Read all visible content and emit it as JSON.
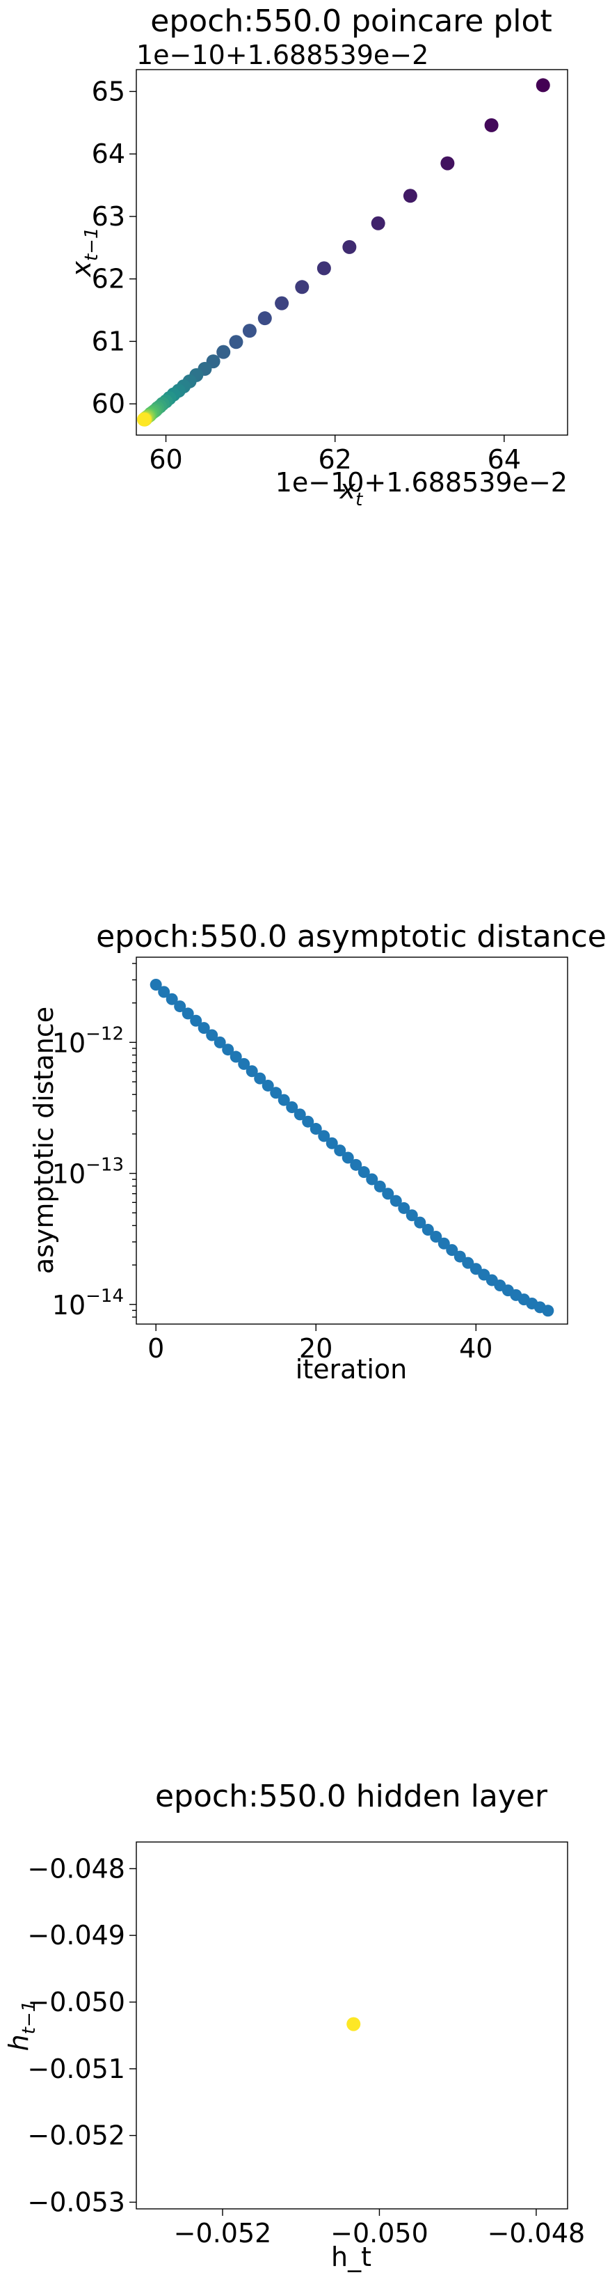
{
  "chart_data": [
    {
      "type": "scatter",
      "title": "epoch:550.0 poincare plot",
      "xlabel_main": "x",
      "xlabel_sub": "t",
      "ylabel_main": "x",
      "ylabel_sub": "t−1",
      "offset_text": "1e−10+1.688539e−2",
      "xlim": [
        59.65,
        64.75
      ],
      "ylim": [
        59.5,
        65.35
      ],
      "xticks": [
        {
          "v": 60,
          "label": "60"
        },
        {
          "v": 62,
          "label": "62"
        },
        {
          "v": 64,
          "label": "64"
        }
      ],
      "yticks": [
        {
          "v": 60,
          "label": "60"
        },
        {
          "v": 61,
          "label": "61"
        },
        {
          "v": 62,
          "label": "62"
        },
        {
          "v": 63,
          "label": "63"
        },
        {
          "v": 64,
          "label": "64"
        },
        {
          "v": 65,
          "label": "65"
        }
      ],
      "colormap": [
        "#440154",
        "#3b528b",
        "#21918c",
        "#5ec962",
        "#fde725"
      ],
      "points_x": [
        64.46,
        63.85,
        63.33,
        62.89,
        62.51,
        62.17,
        61.87,
        61.61,
        61.37,
        61.17,
        60.99,
        60.83,
        60.68,
        60.56,
        60.46,
        60.36,
        60.28,
        60.21,
        60.15,
        60.09,
        60.04,
        60.0,
        59.96,
        59.93,
        59.9,
        59.88,
        59.86,
        59.84,
        59.82,
        59.81,
        59.8,
        59.79,
        59.78,
        59.77,
        59.76,
        59.76,
        59.75,
        59.75,
        59.75,
        59.74
      ],
      "points_y": [
        65.1,
        64.46,
        63.85,
        63.33,
        62.89,
        62.51,
        62.17,
        61.87,
        61.61,
        61.37,
        61.17,
        60.99,
        60.83,
        60.68,
        60.56,
        60.46,
        60.36,
        60.28,
        60.21,
        60.15,
        60.09,
        60.04,
        60.0,
        59.96,
        59.93,
        59.9,
        59.88,
        59.86,
        59.84,
        59.82,
        59.81,
        59.8,
        59.79,
        59.78,
        59.77,
        59.76,
        59.76,
        59.75,
        59.75,
        59.75
      ]
    },
    {
      "type": "scatter",
      "title": "epoch:550.0 asymptotic distance",
      "xlabel": "iteration",
      "ylabel": "asymptotic distance",
      "yscale": "log",
      "xlim": [
        -2.45,
        51.45
      ],
      "ylim_log10": [
        -14.15,
        -11.35
      ],
      "xticks": [
        {
          "v": 0,
          "label": "0"
        },
        {
          "v": 20,
          "label": "20"
        },
        {
          "v": 40,
          "label": "40"
        }
      ],
      "yticks": [
        {
          "e": -12,
          "base": "10",
          "exp": "−12"
        },
        {
          "e": -13,
          "base": "10",
          "exp": "−13"
        },
        {
          "e": -14,
          "base": "10",
          "exp": "−14"
        }
      ],
      "color": "#1f77b4",
      "x_start": 0,
      "x_step": 1,
      "log10_values": [
        -11.56,
        -11.615,
        -11.67,
        -11.725,
        -11.78,
        -11.835,
        -11.89,
        -11.945,
        -12.0,
        -12.055,
        -12.11,
        -12.165,
        -12.22,
        -12.275,
        -12.33,
        -12.385,
        -12.44,
        -12.495,
        -12.55,
        -12.605,
        -12.66,
        -12.715,
        -12.77,
        -12.825,
        -12.88,
        -12.935,
        -12.99,
        -13.045,
        -13.1,
        -13.155,
        -13.21,
        -13.265,
        -13.32,
        -13.375,
        -13.43,
        -13.483,
        -13.535,
        -13.585,
        -13.635,
        -13.683,
        -13.729,
        -13.773,
        -13.815,
        -13.855,
        -13.893,
        -13.929,
        -13.962,
        -13.993,
        -14.022,
        -14.048
      ]
    },
    {
      "type": "scatter",
      "title": "epoch:550.0 hidden layer",
      "xlabel": "h_t",
      "ylabel_main": "h",
      "ylabel_sub": "t−1",
      "xlim": [
        -0.0531,
        -0.0476
      ],
      "ylim": [
        -0.0531,
        -0.0476
      ],
      "xticks": [
        {
          "v": -0.052,
          "label": "−0.052"
        },
        {
          "v": -0.05,
          "label": "−0.050"
        },
        {
          "v": -0.048,
          "label": "−0.048"
        }
      ],
      "yticks": [
        {
          "v": -0.048,
          "label": "−0.048"
        },
        {
          "v": -0.049,
          "label": "−0.049"
        },
        {
          "v": -0.05,
          "label": "−0.050"
        },
        {
          "v": -0.051,
          "label": "−0.051"
        },
        {
          "v": -0.052,
          "label": "−0.052"
        },
        {
          "v": -0.053,
          "label": "−0.053"
        }
      ],
      "color": "#fde725",
      "points_x": [
        -0.05033
      ],
      "points_y": [
        -0.05033
      ]
    }
  ]
}
